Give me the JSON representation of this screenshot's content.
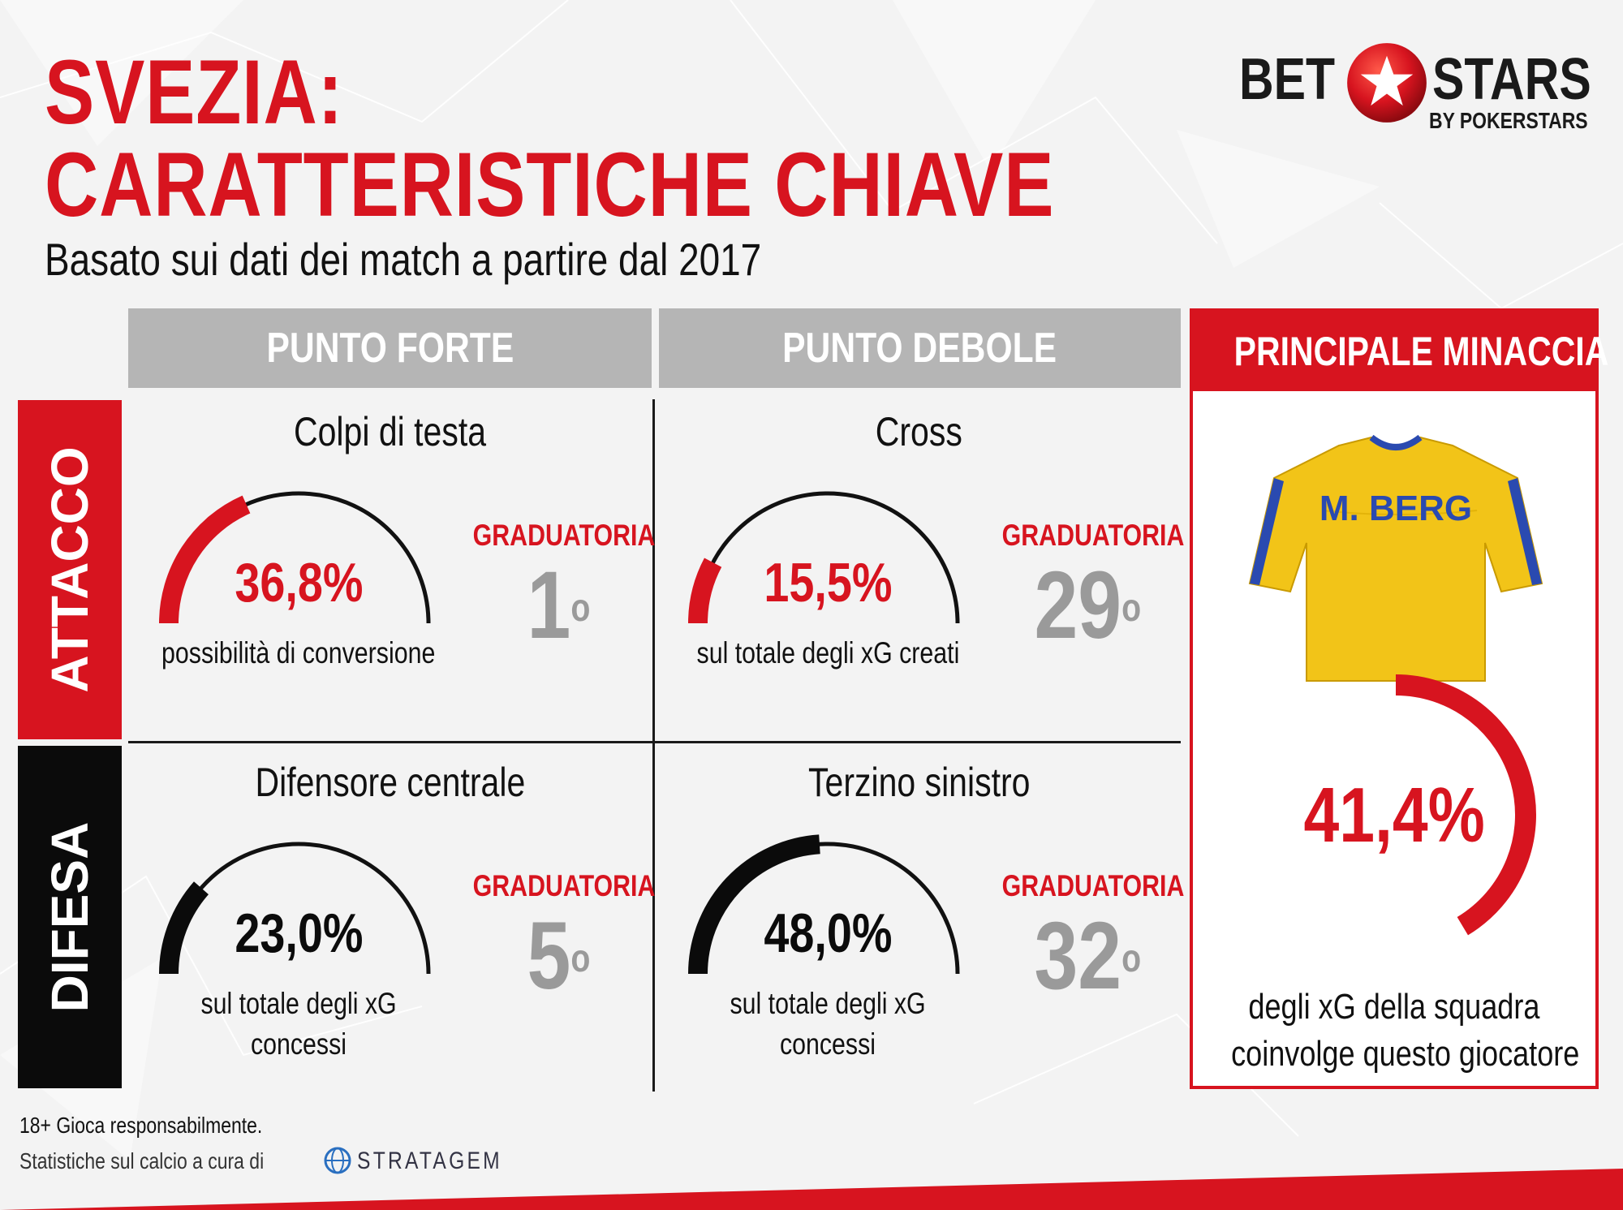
{
  "title_line1": "SVEZIA:",
  "title_line2": "CARATTERISTICHE CHIAVE",
  "subtitle": "Basato sui dati dei match a partire dal 2017",
  "logo": {
    "bet": "BET",
    "stars": "STARS",
    "by": "BY POKERSTARS"
  },
  "columns": {
    "strength": "PUNTO FORTE",
    "weakness": "PUNTO DEBOLE",
    "threat": "PRINCIPALE MINACCIA"
  },
  "rows": {
    "attack": "ATTACCO",
    "defense": "DIFESA"
  },
  "threat": {
    "player_name": "M. BERG",
    "value_label": "41,4%",
    "value": 41.4,
    "caption_line1": "degli xG della squadra",
    "caption_line2": "coinvolge questo giocatore"
  },
  "footer": {
    "responsible": "18+ Gioca responsabilmente.",
    "credit": "Statistiche sul calcio a cura di",
    "stratagem": "STRATAGEM"
  },
  "colors": {
    "accent": "#d7141f",
    "dark": "#0b0b0b",
    "header_grey": "#b5b5b5",
    "rank_grey": "#9a9a9a",
    "jersey_yellow": "#f2c418",
    "jersey_blue": "#2a4ab0"
  },
  "chart_data": {
    "type": "gauge",
    "cells": [
      {
        "row": "ATTACCO",
        "column": "PUNTO FORTE",
        "title": "Colpi di testa",
        "value": 36.8,
        "value_label": "36,8%",
        "caption_line1": "possibilità di conversione",
        "caption_line2": "",
        "rank_label": "GRADUATORIA",
        "rank": "1",
        "rank_sup": "o",
        "color": "#d7141f"
      },
      {
        "row": "ATTACCO",
        "column": "PUNTO DEBOLE",
        "title": "Cross",
        "value": 15.5,
        "value_label": "15,5%",
        "caption_line1": "sul totale degli xG creati",
        "caption_line2": "",
        "rank_label": "GRADUATORIA",
        "rank": "29",
        "rank_sup": "o",
        "color": "#d7141f"
      },
      {
        "row": "DIFESA",
        "column": "PUNTO FORTE",
        "title": "Difensore centrale",
        "value": 23.0,
        "value_label": "23,0%",
        "caption_line1": "sul totale degli xG",
        "caption_line2": "concessi",
        "rank_label": "GRADUATORIA",
        "rank": "5",
        "rank_sup": "o",
        "color": "#0b0b0b"
      },
      {
        "row": "DIFESA",
        "column": "PUNTO DEBOLE",
        "title": "Terzino sinistro",
        "value": 48.0,
        "value_label": "48,0%",
        "caption_line1": "sul totale degli xG",
        "caption_line2": "concessi",
        "rank_label": "GRADUATORIA",
        "rank": "32",
        "rank_sup": "o",
        "color": "#0b0b0b"
      }
    ]
  }
}
